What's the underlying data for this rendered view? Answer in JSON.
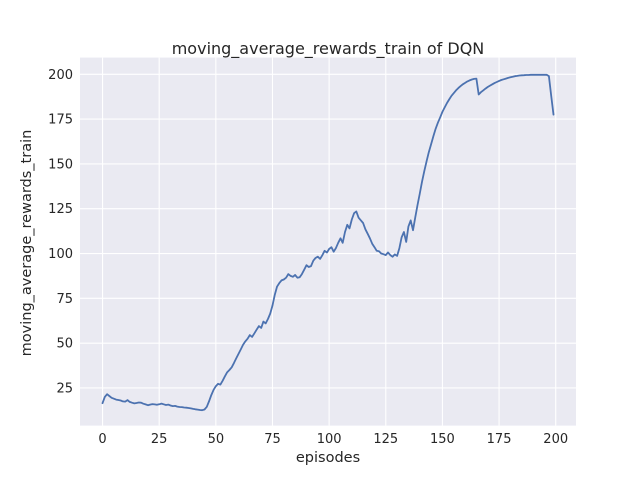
{
  "figure": {
    "title": "moving_average_rewards_train of DQN",
    "xlabel": "episodes",
    "ylabel": "moving_average_rewards_train"
  },
  "chart_data": {
    "type": "line",
    "title": "moving_average_rewards_train of DQN",
    "xlabel": "episodes",
    "ylabel": "moving_average_rewards_train",
    "x_ticks": [
      0,
      25,
      50,
      75,
      100,
      125,
      150,
      175,
      200
    ],
    "y_ticks": [
      25,
      50,
      75,
      100,
      125,
      150,
      175,
      200
    ],
    "xlim": [
      -9.95,
      208.95
    ],
    "ylim": [
      4.0,
      209.3
    ],
    "grid": true,
    "legend_position": "none",
    "line_color": "#4c72b0",
    "plot_bg_color": "#eaeaf2",
    "grid_color": "#ffffff",
    "text_color": "#262626",
    "figure_bg_color": "#ffffff",
    "series": [
      {
        "name": "moving_average_rewards_train",
        "x_is_episode_index": true,
        "values": [
          16.5,
          20,
          21.5,
          20.5,
          19.5,
          19,
          18.5,
          18.3,
          18,
          17.5,
          17.4,
          18.2,
          17.2,
          16.8,
          16.4,
          16.6,
          16.9,
          16.8,
          16.2,
          15.8,
          15.4,
          15.7,
          16,
          15.8,
          15.6,
          15.9,
          16.3,
          15.9,
          15.5,
          15.7,
          15.2,
          14.9,
          15,
          14.6,
          14.4,
          14.3,
          14.1,
          14,
          13.8,
          13.6,
          13.3,
          13.1,
          12.9,
          12.7,
          12.6,
          13,
          14.5,
          17.5,
          21,
          24,
          26,
          27.3,
          26.9,
          29,
          31.5,
          33.8,
          35,
          36.5,
          39,
          41.5,
          44,
          46.5,
          49,
          51,
          52.5,
          54.5,
          53.5,
          55.5,
          57.5,
          59.5,
          58.5,
          62,
          61,
          63.5,
          66.5,
          71,
          77,
          81.5,
          83.5,
          85,
          85.5,
          86.5,
          88.5,
          87.5,
          87,
          88,
          86.5,
          86.8,
          88.5,
          91,
          93.5,
          92.5,
          93,
          96,
          97.5,
          98.2,
          97,
          99,
          101.5,
          100.5,
          102.5,
          103.5,
          101,
          103,
          106,
          108.5,
          106,
          112,
          116,
          114,
          119,
          122.5,
          123.5,
          120,
          118.5,
          117,
          113.5,
          111,
          108.5,
          105.5,
          103.5,
          101.5,
          101.3,
          100,
          99.6,
          99.1,
          100.6,
          99.1,
          98.2,
          99.5,
          98.7,
          103,
          109,
          112,
          106.5,
          115,
          118.5,
          113,
          120,
          127,
          133.5,
          140,
          146,
          151.5,
          156.5,
          161,
          165.5,
          169.5,
          173,
          176,
          179,
          181.5,
          184,
          186,
          188,
          189.5,
          191,
          192.3,
          193.4,
          194.4,
          195.2,
          196,
          196.6,
          197.1,
          197.4,
          197.6,
          188.7,
          190,
          191,
          192,
          192.9,
          193.7,
          194.4,
          195.1,
          195.7,
          196.3,
          196.8,
          197.2,
          197.6,
          198,
          198.3,
          198.6,
          198.9,
          199.1,
          199.3,
          199.4,
          199.5,
          199.6,
          199.6,
          199.7,
          199.7,
          199.7,
          199.7,
          199.7,
          199.7,
          199.7,
          199.7,
          199,
          188,
          177.5
        ]
      }
    ]
  }
}
